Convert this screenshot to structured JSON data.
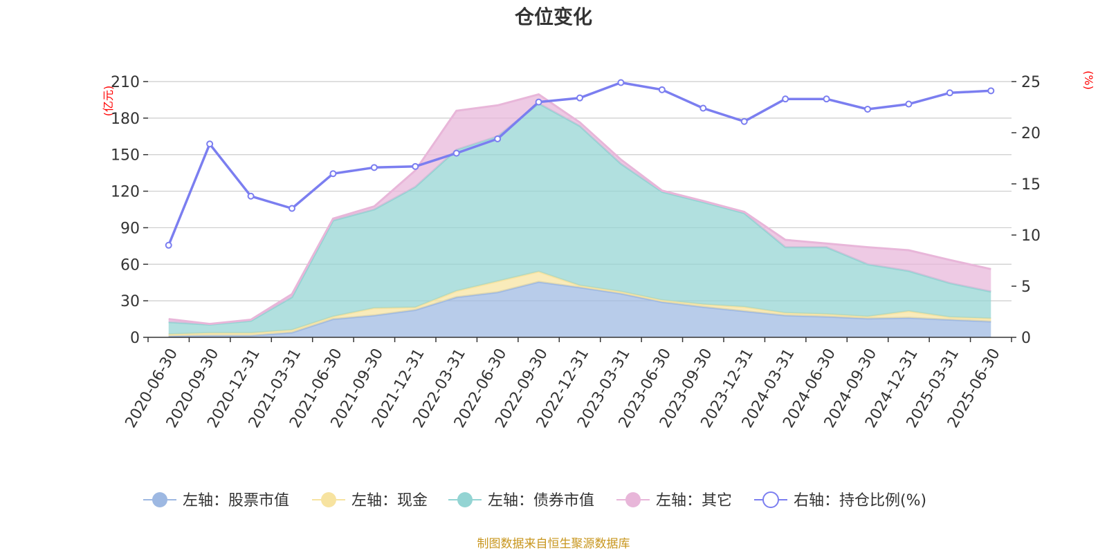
{
  "chart_data": {
    "type": "area",
    "title": "仓位变化",
    "left_unit": "(亿元)",
    "right_unit": "(%)",
    "categories": [
      "2020-06-30",
      "2020-09-30",
      "2020-12-31",
      "2021-03-31",
      "2021-06-30",
      "2021-09-30",
      "2021-12-31",
      "2022-03-31",
      "2022-06-30",
      "2022-09-30",
      "2022-12-31",
      "2023-03-31",
      "2023-06-30",
      "2023-09-30",
      "2023-12-31",
      "2024-03-31",
      "2024-06-30",
      "2024-09-30",
      "2024-12-31",
      "2025-03-31",
      "2025-06-30"
    ],
    "left_axis": {
      "min": 0,
      "max": 210,
      "ticks": [
        0,
        30,
        60,
        90,
        120,
        150,
        180,
        210
      ]
    },
    "right_axis": {
      "min": 0,
      "max": 25,
      "ticks": [
        0,
        5,
        10,
        15,
        20,
        25
      ]
    },
    "series": [
      {
        "name": "左轴：股票市值",
        "axis": "left",
        "stack": true,
        "color": "#9db8e2",
        "values": [
          1,
          1.5,
          1.5,
          4,
          15,
          18,
          22.5,
          33,
          37,
          45.5,
          41,
          36,
          29,
          25,
          21.5,
          18,
          17,
          15.5,
          16,
          14.5,
          13
        ]
      },
      {
        "name": "左轴：现金",
        "axis": "left",
        "stack": true,
        "color": "#f7e3a0",
        "values": [
          1.5,
          2,
          2,
          2,
          2,
          6,
          2,
          5,
          9,
          8.5,
          1.5,
          1.5,
          1.5,
          2,
          3.5,
          2,
          2,
          1.5,
          5.5,
          2,
          2.5
        ]
      },
      {
        "name": "左轴：债券市值",
        "axis": "left",
        "stack": true,
        "color": "#93d4d3",
        "values": [
          10,
          7,
          10,
          27,
          79,
          81,
          99,
          116,
          119,
          138,
          131,
          105,
          89,
          84,
          77,
          54,
          55,
          43,
          33,
          28,
          22
        ]
      },
      {
        "name": "左轴：其它",
        "axis": "left",
        "stack": true,
        "color": "#e8b6d9",
        "values": [
          2.5,
          0.5,
          1,
          2.5,
          1.5,
          2.5,
          13.5,
          32,
          25.5,
          7.5,
          3,
          3.5,
          1,
          1,
          1,
          6,
          3,
          14,
          17,
          19,
          18.5
        ]
      },
      {
        "name": "右轴：持仓比例(%)",
        "axis": "right",
        "stack": false,
        "color": "#7b7ef0",
        "values": [
          9.0,
          18.9,
          13.8,
          12.6,
          16.0,
          16.6,
          16.7,
          18.0,
          19.4,
          23.0,
          23.4,
          24.9,
          24.2,
          22.4,
          21.1,
          23.3,
          23.3,
          22.3,
          22.8,
          23.9,
          24.1
        ]
      }
    ],
    "legend_position": "bottom",
    "grid": true
  },
  "source_note": "制图数据来自恒生聚源数据库"
}
